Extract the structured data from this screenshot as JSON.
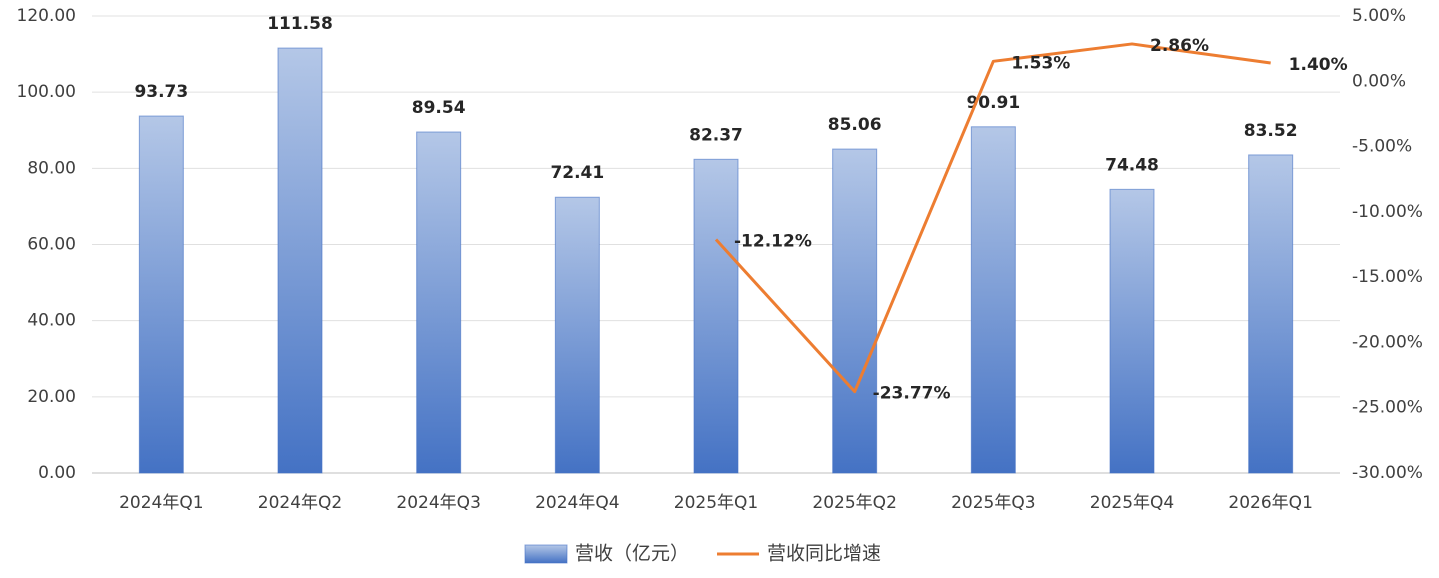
{
  "chart_data": {
    "type": "bar-line",
    "categories": [
      "2024年Q1",
      "2024年Q2",
      "2024年Q3",
      "2024年Q4",
      "2025年Q1",
      "2025年Q2",
      "2025年Q3",
      "2025年Q4",
      "2026年Q1"
    ],
    "series": [
      {
        "name": "营收（亿元）",
        "type": "bar",
        "color": "#4472c4",
        "axis": "y",
        "values": [
          93.73,
          111.58,
          89.54,
          72.41,
          82.37,
          85.06,
          90.91,
          74.48,
          83.52
        ]
      },
      {
        "name": "营收同比增速",
        "type": "line",
        "color": "#ed7d31",
        "axis": "y2",
        "values": [
          null,
          null,
          null,
          null,
          -12.12,
          -23.77,
          1.53,
          2.86,
          1.4
        ],
        "value_labels": [
          null,
          null,
          null,
          null,
          "-12.12%",
          "-23.77%",
          "1.53%",
          "2.86%",
          "1.40%"
        ]
      }
    ],
    "ylim": [
      0,
      120
    ],
    "yticks": [
      {
        "value": 0,
        "label": "0.00"
      },
      {
        "value": 20,
        "label": "20.00"
      },
      {
        "value": 40,
        "label": "40.00"
      },
      {
        "value": 60,
        "label": "60.00"
      },
      {
        "value": 80,
        "label": "80.00"
      },
      {
        "value": 100,
        "label": "100.00"
      },
      {
        "value": 120,
        "label": "120.00"
      }
    ],
    "y2lim": [
      -30,
      5
    ],
    "y2ticks": [
      {
        "value": -30,
        "label": "-30.00%"
      },
      {
        "value": -25,
        "label": "-25.00%"
      },
      {
        "value": -20,
        "label": "-20.00%"
      },
      {
        "value": -15,
        "label": "-15.00%"
      },
      {
        "value": -10,
        "label": "-10.00%"
      },
      {
        "value": -5,
        "label": "-5.00%"
      },
      {
        "value": 0,
        "label": "0.00%"
      },
      {
        "value": 5,
        "label": "5.00%"
      }
    ],
    "grid": true,
    "legend": "bottom"
  }
}
